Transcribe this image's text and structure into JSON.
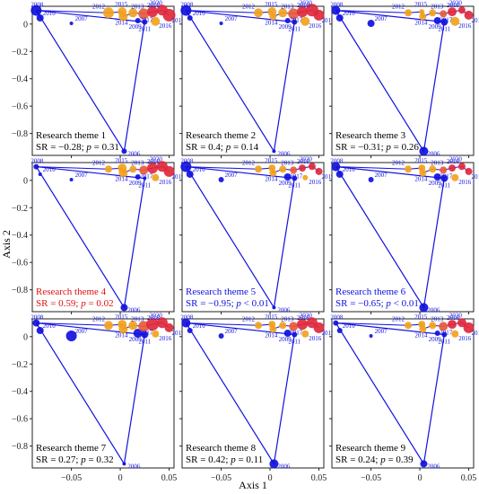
{
  "chart_data": {
    "type": "scatter",
    "layout": "3x3 small multiples, shared axes",
    "xlabel": "Axis 1",
    "ylabel": "Axis 2",
    "xlim": [
      -0.09,
      0.055
    ],
    "ylim": [
      -0.96,
      0.13
    ],
    "xticks": [
      -0.05,
      0,
      0.05
    ],
    "xtick_labels": [
      "−0.05",
      "0",
      "0.05"
    ],
    "yticks": [
      0,
      -0.2,
      -0.4,
      -0.6,
      -0.8
    ],
    "ytick_labels": [
      "0",
      "−0.2",
      "−0.4",
      "−0.6",
      "−0.8"
    ],
    "grid": false,
    "year_points": [
      {
        "year": "2006",
        "x": 0.004,
        "y": -0.93
      },
      {
        "year": "2007",
        "x": -0.05,
        "y": 0.005
      },
      {
        "year": "2008",
        "x": -0.086,
        "y": 0.1
      },
      {
        "year": "2009",
        "x": 0.018,
        "y": 0.025
      },
      {
        "year": "2010",
        "x": -0.082,
        "y": 0.045
      },
      {
        "year": "2011",
        "x": 0.025,
        "y": 0.015
      },
      {
        "year": "2012",
        "x": -0.012,
        "y": 0.082
      },
      {
        "year": "2013",
        "x": 0.013,
        "y": 0.082
      },
      {
        "year": "2014",
        "x": 0.003,
        "y": 0.055
      },
      {
        "year": "2015",
        "x": 0.002,
        "y": 0.09
      },
      {
        "year": "2016",
        "x": 0.036,
        "y": 0.02
      },
      {
        "year": "2017",
        "x": 0.024,
        "y": 0.075
      },
      {
        "year": "2018",
        "x": 0.033,
        "y": 0.09
      },
      {
        "year": "2019",
        "x": 0.05,
        "y": 0.065
      },
      {
        "year": "2020",
        "x": 0.043,
        "y": 0.102
      }
    ],
    "trajectory_order": [
      "2008",
      "2011",
      "2006",
      "2008"
    ],
    "point_colors": {
      "2006": "#1010e0",
      "2007": "#1010e0",
      "2008": "#1010e0",
      "2009": "#1010e0",
      "2010": "#1010e0",
      "2011": "#1010e0",
      "2012": "#f2a21e",
      "2013": "#f2a21e",
      "2014": "#f2a21e",
      "2015": "#f2a21e",
      "2016": "#f2a21e",
      "2017": "#e85a3a",
      "2018": "#e0283c",
      "2019": "#e0283c",
      "2020": "#e0283c"
    },
    "point_size_scale": "dot size proportional to theme weight in the year",
    "panels": [
      {
        "theme": "Research theme 1",
        "stat_prefix": "SR = −0.28; ",
        "p_text": " = 0.31",
        "highlight": "#000000",
        "sizes": {
          "2006": 3,
          "2007": 2,
          "2008": 6,
          "2009": 3,
          "2010": 4,
          "2011": 3,
          "2012": 6,
          "2013": 5,
          "2014": 5,
          "2015": 5,
          "2016": 5,
          "2017": 6,
          "2018": 6,
          "2019": 7,
          "2020": 6
        }
      },
      {
        "theme": "Research theme 2",
        "stat_prefix": "SR = 0.4; ",
        "p_text": " = 0.14",
        "highlight": "#000000",
        "sizes": {
          "2006": 2,
          "2007": 2,
          "2008": 6,
          "2009": 3,
          "2010": 3,
          "2011": 3,
          "2012": 5,
          "2013": 5,
          "2014": 4,
          "2015": 5,
          "2016": 5,
          "2017": 6,
          "2018": 6,
          "2019": 6,
          "2020": 7
        }
      },
      {
        "theme": "Research theme 3",
        "stat_prefix": "SR = −0.31; ",
        "p_text": " = 0.26",
        "highlight": "#000000",
        "sizes": {
          "2006": 5,
          "2007": 4,
          "2008": 5,
          "2009": 4,
          "2010": 4,
          "2011": 4,
          "2012": 4,
          "2013": 4,
          "2014": 4,
          "2015": 3,
          "2016": 5,
          "2017": 4,
          "2018": 5,
          "2019": 5,
          "2020": 4
        }
      },
      {
        "theme": "Research theme 4",
        "stat_prefix": "SR = 0.59; ",
        "p_text": " = 0.02",
        "highlight": "#e01010",
        "sizes": {
          "2006": 4,
          "2007": 2,
          "2008": 3,
          "2009": 3,
          "2010": 2,
          "2011": 2,
          "2012": 4,
          "2013": 4,
          "2014": 5,
          "2015": 5,
          "2016": 4,
          "2017": 5,
          "2018": 6,
          "2019": 6,
          "2020": 6
        }
      },
      {
        "theme": "Research theme 5",
        "stat_prefix": "SR = −0.95; ",
        "p_text": " < 0.01",
        "highlight": "#1010e0",
        "sizes": {
          "2006": 2,
          "2007": 3,
          "2008": 6,
          "2009": 4,
          "2010": 4,
          "2011": 3,
          "2012": 4,
          "2013": 4,
          "2014": 4,
          "2015": 4,
          "2016": 3,
          "2017": 4,
          "2018": 4,
          "2019": 4,
          "2020": 4
        }
      },
      {
        "theme": "Research theme 6",
        "stat_prefix": "SR = −0.65; ",
        "p_text": " < 0.01",
        "highlight": "#1010e0",
        "sizes": {
          "2006": 5,
          "2007": 3,
          "2008": 5,
          "2009": 4,
          "2010": 4,
          "2011": 4,
          "2012": 4,
          "2013": 4,
          "2014": 4,
          "2015": 4,
          "2016": 4,
          "2017": 4,
          "2018": 4,
          "2019": 4,
          "2020": 4
        }
      },
      {
        "theme": "Research theme 7",
        "stat_prefix": "SR = 0.27; ",
        "p_text": " = 0.32",
        "highlight": "#000000",
        "sizes": {
          "2006": 2,
          "2007": 6,
          "2008": 4,
          "2009": 5,
          "2010": 4,
          "2011": 4,
          "2012": 5,
          "2013": 5,
          "2014": 5,
          "2015": 5,
          "2016": 4,
          "2017": 6,
          "2018": 7,
          "2019": 5,
          "2020": 6
        }
      },
      {
        "theme": "Research theme 8",
        "stat_prefix": "SR = 0.42; ",
        "p_text": " = 0.11",
        "highlight": "#000000",
        "sizes": {
          "2006": 5,
          "2007": 3,
          "2008": 5,
          "2009": 4,
          "2010": 3,
          "2011": 3,
          "2012": 4,
          "2013": 4,
          "2014": 4,
          "2015": 4,
          "2016": 4,
          "2017": 5,
          "2018": 6,
          "2019": 6,
          "2020": 6
        }
      },
      {
        "theme": "Research theme 9",
        "stat_prefix": "SR = 0.24; ",
        "p_text": " = 0.39",
        "highlight": "#000000",
        "sizes": {
          "2006": 4,
          "2007": 2,
          "2008": 3,
          "2009": 3,
          "2010": 3,
          "2011": 3,
          "2012": 4,
          "2013": 4,
          "2014": 4,
          "2015": 4,
          "2016": 4,
          "2017": 5,
          "2018": 5,
          "2019": 6,
          "2020": 5
        }
      }
    ]
  }
}
